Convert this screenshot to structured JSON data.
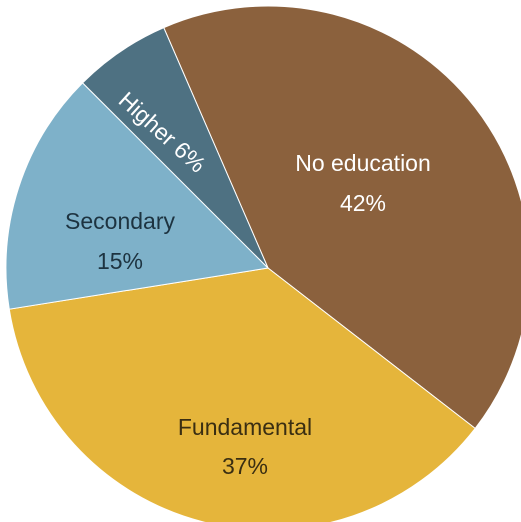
{
  "chart_data": {
    "type": "pie",
    "title": "",
    "slices": [
      {
        "label": "No education",
        "percent_label": "42%",
        "value": 42,
        "color": "#8b613d",
        "text_color": "#ffffff"
      },
      {
        "label": "Fundamental",
        "percent_label": "37%",
        "value": 37,
        "color": "#e5b53b",
        "text_color": "#3a2e12"
      },
      {
        "label": "Secondary",
        "percent_label": "15%",
        "value": 15,
        "color": "#7eb1c9",
        "text_color": "#1d3340"
      },
      {
        "label": "Higher 6%",
        "percent_label": "",
        "value": 6,
        "color": "#4e7182",
        "text_color": "#ffffff"
      }
    ]
  }
}
